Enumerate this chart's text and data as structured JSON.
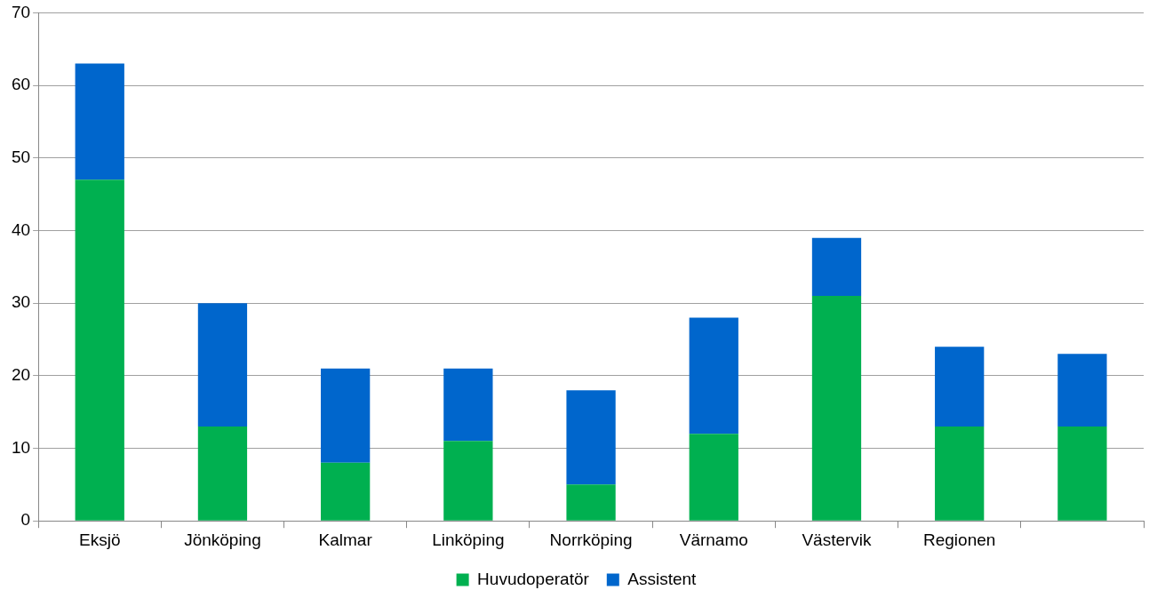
{
  "chart_data": {
    "type": "bar",
    "stacked": true,
    "categories": [
      "Eksjö",
      "Jönköping",
      "Kalmar",
      "Linköping",
      "Norrköping",
      "Värnamo",
      "Västervik",
      "Regionen",
      null
    ],
    "series": [
      {
        "name": "Huvudoperatör",
        "color": "#00b050",
        "values": [
          47,
          13,
          8,
          11,
          5,
          12,
          31,
          13,
          13
        ]
      },
      {
        "name": "Assistent",
        "color": "#0066cc",
        "values": [
          16,
          17,
          13,
          10,
          13,
          16,
          8,
          11,
          10
        ]
      }
    ],
    "ylim": [
      0,
      70
    ],
    "yticks": [
      0,
      10,
      20,
      30,
      40,
      50,
      60,
      70
    ],
    "grid": "y",
    "legend": "bottom"
  }
}
